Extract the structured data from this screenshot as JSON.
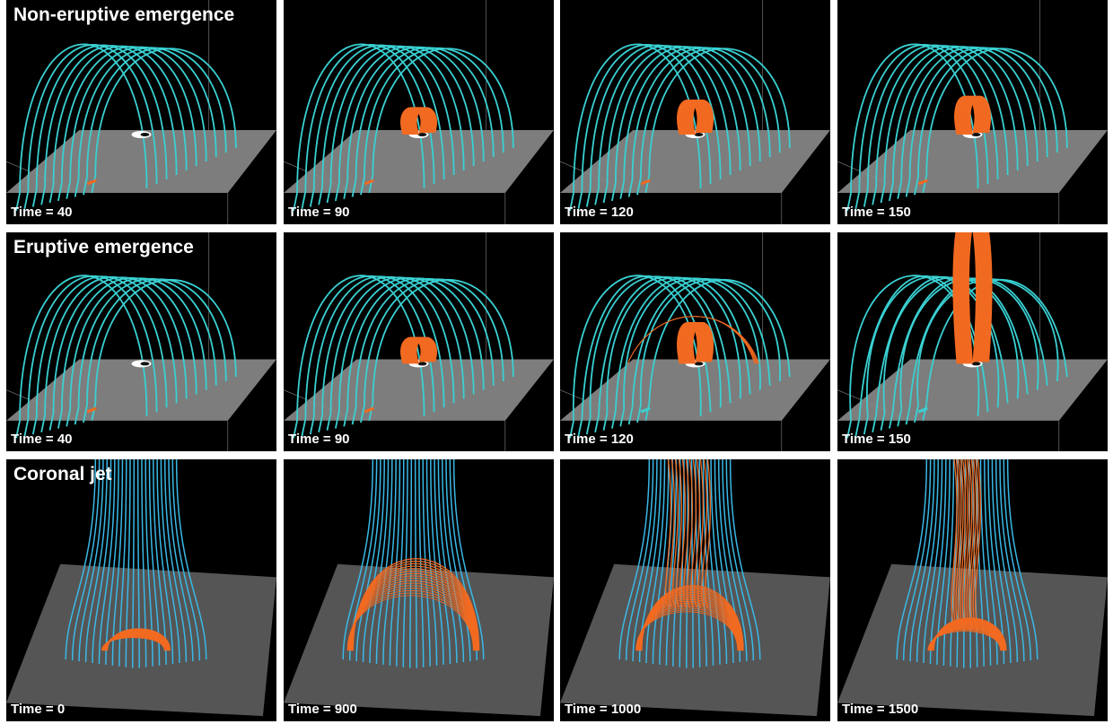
{
  "rows": [
    {
      "title": "Non-eruptive emergence",
      "kind": "arcade",
      "panels": [
        {
          "time_label": "Time = 40",
          "flux_rope_height": 0.05,
          "eruption": 0.0
        },
        {
          "time_label": "Time = 90",
          "flux_rope_height": 0.35,
          "eruption": 0.0
        },
        {
          "time_label": "Time = 120",
          "flux_rope_height": 0.45,
          "eruption": 0.0
        },
        {
          "time_label": "Time = 150",
          "flux_rope_height": 0.5,
          "eruption": 0.0
        }
      ]
    },
    {
      "title": "Eruptive emergence",
      "kind": "arcade",
      "panels": [
        {
          "time_label": "Time = 40",
          "flux_rope_height": 0.05,
          "eruption": 0.0
        },
        {
          "time_label": "Time = 90",
          "flux_rope_height": 0.35,
          "eruption": 0.0
        },
        {
          "time_label": "Time = 120",
          "flux_rope_height": 0.55,
          "eruption": 0.5
        },
        {
          "time_label": "Time = 150",
          "flux_rope_height": 1.0,
          "eruption": 1.0
        }
      ]
    },
    {
      "title": "Coronal jet",
      "kind": "jet",
      "panels": [
        {
          "time_label": "Time = 0",
          "dome_height": 0.2,
          "jet": 0.0
        },
        {
          "time_label": "Time = 900",
          "dome_height": 0.85,
          "jet": 0.0
        },
        {
          "time_label": "Time = 1000",
          "dome_height": 0.6,
          "jet": 1.0
        },
        {
          "time_label": "Time = 1500",
          "dome_height": 0.3,
          "jet": 0.6
        }
      ]
    }
  ],
  "colors": {
    "background": "#000000",
    "arcade_field_lines": "#3ad0d2",
    "jet_field_lines": "#3ab8e6",
    "flux_rope": "#f26a21",
    "photosphere": "#7d7d7d",
    "jet_plane": "#555555"
  }
}
